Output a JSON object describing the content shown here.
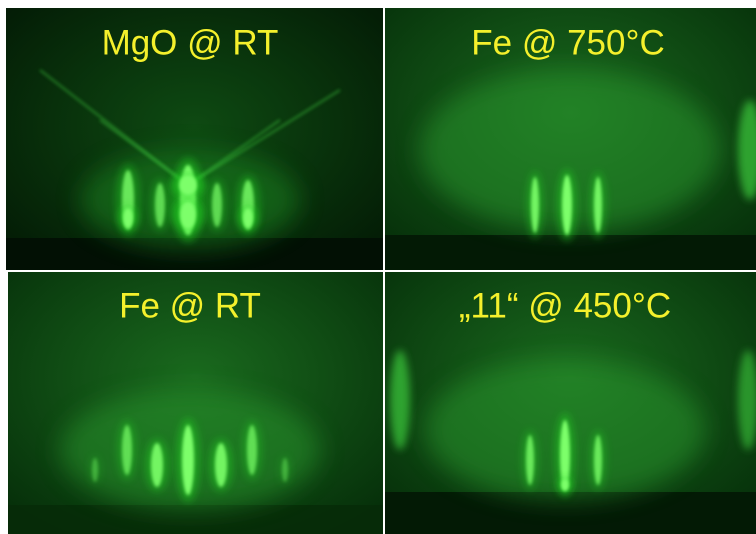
{
  "panels": [
    {
      "label": "MgO @ RT"
    },
    {
      "label": "Fe @ 750°C"
    },
    {
      "label": "Fe @ RT"
    },
    {
      "label": "„11“ @ 450°C"
    }
  ]
}
